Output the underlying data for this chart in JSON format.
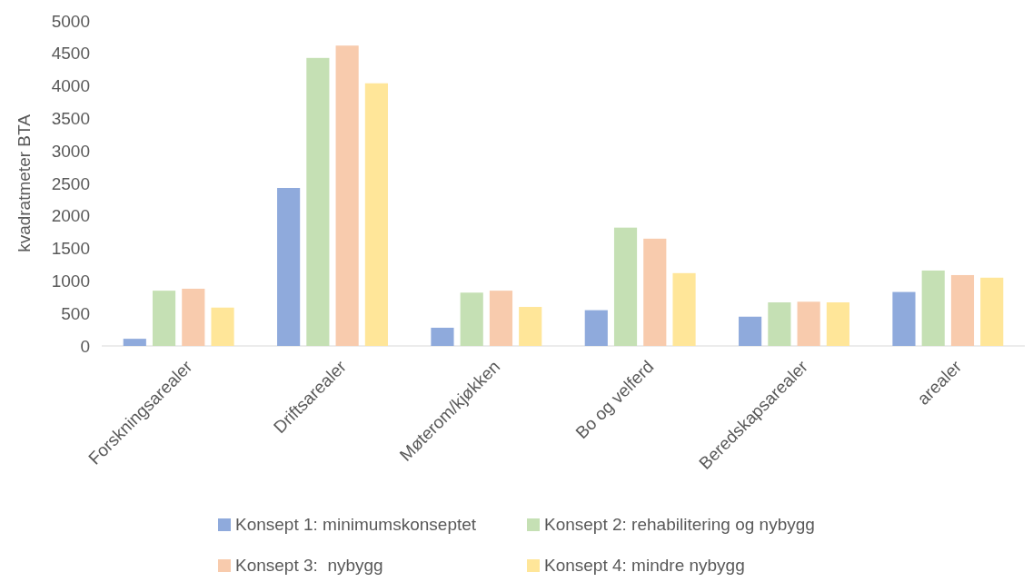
{
  "chart_data": {
    "type": "bar",
    "ylabel": "kvadratmeter BTA",
    "categories": [
      "Forskningsarealer",
      "Driftsarealer",
      "Møterom/kjøkken",
      "Bo og velferd",
      "Beredskapsarealer",
      "arealer"
    ],
    "series": [
      {
        "name": "Konsept 1: minimumskonseptet",
        "color": "#8faadc",
        "values": [
          110,
          2430,
          280,
          550,
          450,
          830
        ]
      },
      {
        "name": "Konsept 2: rehabilitering og nybygg",
        "color": "#c5e0b4",
        "values": [
          850,
          4430,
          820,
          1820,
          670,
          1160
        ]
      },
      {
        "name": "Konsept 3:  nybygg",
        "color": "#f8cbad",
        "values": [
          880,
          4620,
          850,
          1650,
          680,
          1090
        ]
      },
      {
        "name": "Konsept 4: mindre nybygg",
        "color": "#ffe699",
        "values": [
          590,
          4040,
          600,
          1120,
          670,
          1050
        ]
      }
    ],
    "ylim": [
      0,
      5000
    ],
    "yticks": [
      0,
      500,
      1000,
      1500,
      2000,
      2500,
      3000,
      3500,
      4000,
      4500,
      5000
    ],
    "grid": false,
    "legend": "bottom"
  }
}
